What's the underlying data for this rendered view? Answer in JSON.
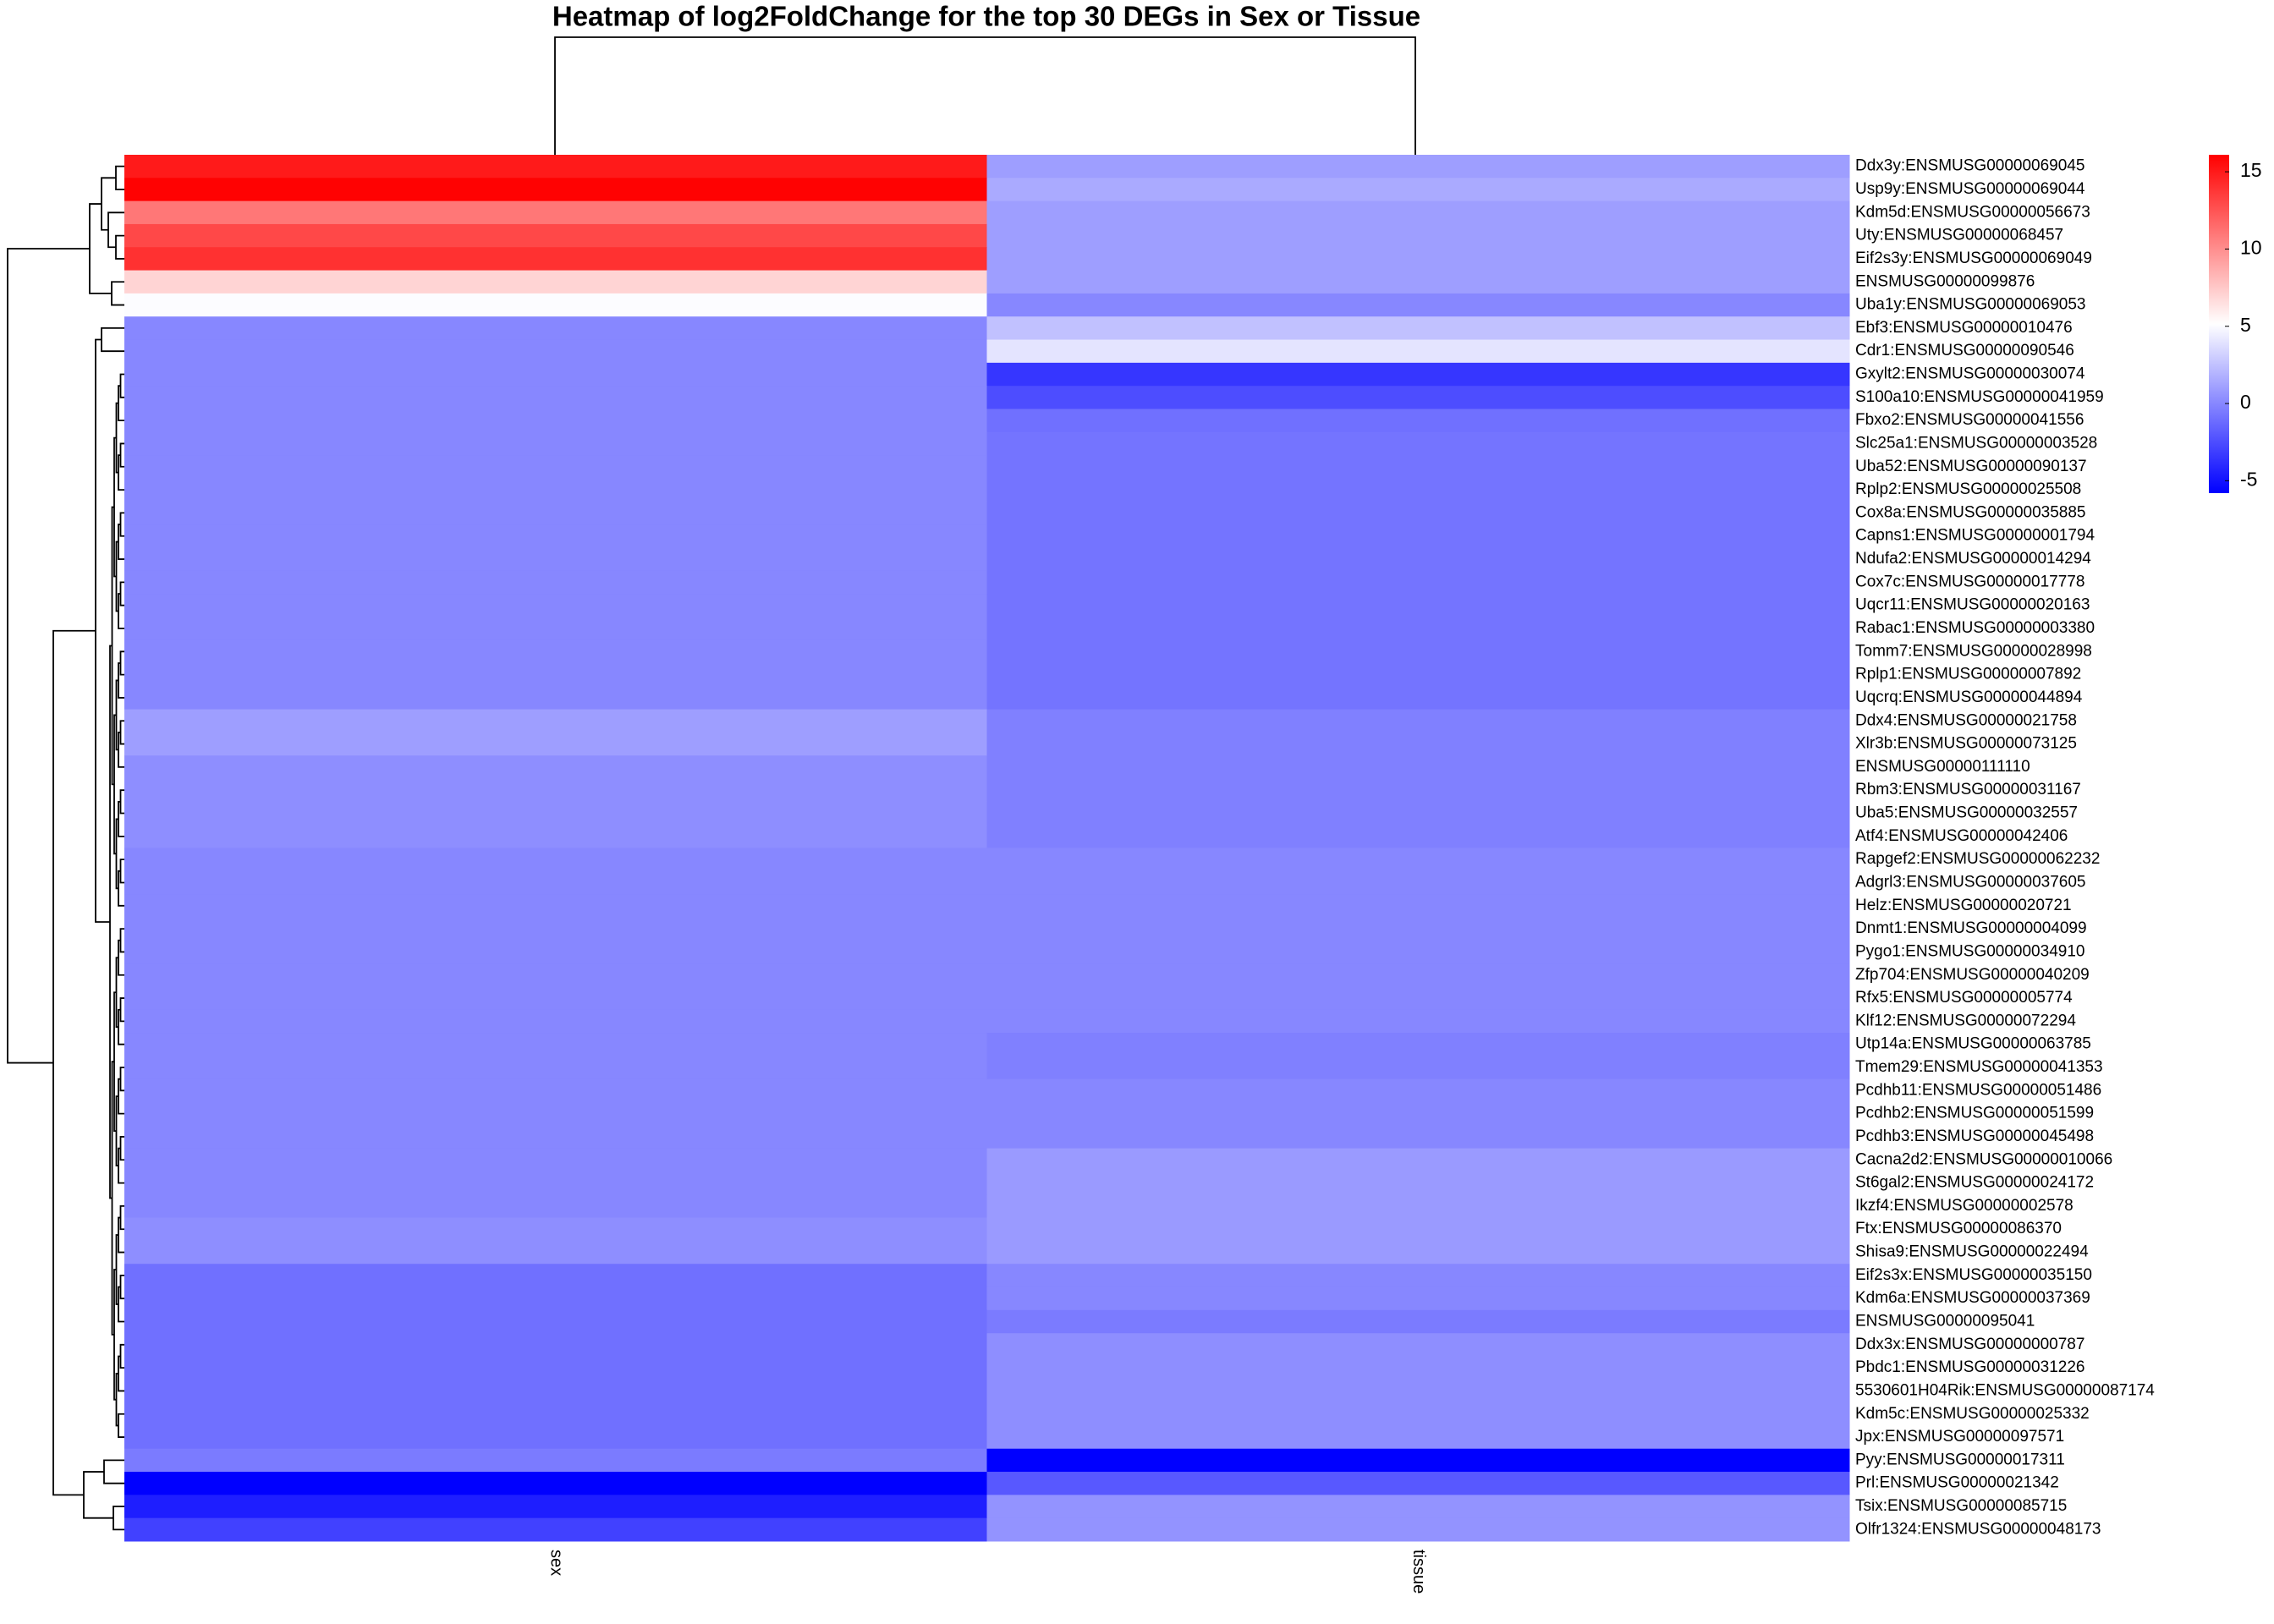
{
  "chart_data": {
    "type": "heatmap",
    "title": "Heatmap of log2FoldChange for the top 30 DEGs in Sex or Tissue",
    "columns": [
      "sex",
      "tissue"
    ],
    "rows": [
      "Ddx3y:ENSMUSG00000069045",
      "Usp9y:ENSMUSG00000069044",
      "Kdm5d:ENSMUSG00000056673",
      "Uty:ENSMUSG00000068457",
      "Eif2s3y:ENSMUSG00000069049",
      "ENSMUSG00000099876",
      "Uba1y:ENSMUSG00000069053",
      "Ebf3:ENSMUSG00000010476",
      "Cdr1:ENSMUSG00000090546",
      "Gxylt2:ENSMUSG00000030074",
      "S100a10:ENSMUSG00000041959",
      "Fbxo2:ENSMUSG00000041556",
      "Slc25a1:ENSMUSG00000003528",
      "Uba52:ENSMUSG00000090137",
      "Rplp2:ENSMUSG00000025508",
      "Cox8a:ENSMUSG00000035885",
      "Capns1:ENSMUSG00000001794",
      "Ndufa2:ENSMUSG00000014294",
      "Cox7c:ENSMUSG00000017778",
      "Uqcr11:ENSMUSG00000020163",
      "Rabac1:ENSMUSG00000003380",
      "Tomm7:ENSMUSG00000028998",
      "Rplp1:ENSMUSG00000007892",
      "Uqcrq:ENSMUSG00000044894",
      "Ddx4:ENSMUSG00000021758",
      "Xlr3b:ENSMUSG00000073125",
      "ENSMUSG00000111110",
      "Rbm3:ENSMUSG00000031167",
      "Uba5:ENSMUSG00000032557",
      "Atf4:ENSMUSG00000042406",
      "Rapgef2:ENSMUSG00000062232",
      "Adgrl3:ENSMUSG00000037605",
      "Helz:ENSMUSG00000020721",
      "Dnmt1:ENSMUSG00000004099",
      "Pygo1:ENSMUSG00000034910",
      "Zfp704:ENSMUSG00000040209",
      "Rfx5:ENSMUSG00000005774",
      "Klf12:ENSMUSG00000072294",
      "Utp14a:ENSMUSG00000063785",
      "Tmem29:ENSMUSG00000041353",
      "Pcdhb11:ENSMUSG00000051486",
      "Pcdhb2:ENSMUSG00000051599",
      "Pcdhb3:ENSMUSG00000045498",
      "Cacna2d2:ENSMUSG00000010066",
      "St6gal2:ENSMUSG00000024172",
      "Ikzf4:ENSMUSG00000002578",
      "Ftx:ENSMUSG00000086370",
      "Shisa9:ENSMUSG00000022494",
      "Eif2s3x:ENSMUSG00000035150",
      "Kdm6a:ENSMUSG00000037369",
      "ENSMUSG00000095041",
      "Ddx3x:ENSMUSG00000000787",
      "Pbdc1:ENSMUSG00000031226",
      "5530601H04Rik:ENSMUSG00000087174",
      "Kdm5c:ENSMUSG00000025332",
      "Jpx:ENSMUSG00000097571",
      "Pyy:ENSMUSG00000017311",
      "Prl:ENSMUSG00000021342",
      "Tsix:ENSMUSG00000085715",
      "Olfr1324:ENSMUSG00000048173"
    ],
    "values": [
      [
        15,
        1
      ],
      [
        16,
        1.5
      ],
      [
        11,
        1
      ],
      [
        13,
        1
      ],
      [
        14,
        1
      ],
      [
        7,
        1
      ],
      [
        5,
        0
      ],
      [
        0,
        2.5
      ],
      [
        0,
        4
      ],
      [
        0,
        -3.5
      ],
      [
        0,
        -2.5
      ],
      [
        0,
        -1
      ],
      [
        0,
        -0.8
      ],
      [
        0,
        -0.8
      ],
      [
        0,
        -0.8
      ],
      [
        0,
        -0.8
      ],
      [
        0,
        -0.8
      ],
      [
        0,
        -0.8
      ],
      [
        0,
        -0.8
      ],
      [
        0,
        -0.8
      ],
      [
        0,
        -0.8
      ],
      [
        0,
        -0.8
      ],
      [
        0,
        -0.8
      ],
      [
        0,
        -0.8
      ],
      [
        1,
        -0.3
      ],
      [
        1,
        -0.3
      ],
      [
        0.3,
        -0.3
      ],
      [
        0.3,
        -0.3
      ],
      [
        0.3,
        -0.3
      ],
      [
        0.3,
        -0.3
      ],
      [
        0,
        0
      ],
      [
        0,
        0
      ],
      [
        0,
        0
      ],
      [
        0,
        0
      ],
      [
        0,
        0
      ],
      [
        0,
        0
      ],
      [
        0,
        0
      ],
      [
        0,
        0
      ],
      [
        0,
        -0.3
      ],
      [
        0,
        -0.3
      ],
      [
        0,
        0
      ],
      [
        0,
        0
      ],
      [
        0,
        0
      ],
      [
        0,
        0.8
      ],
      [
        0,
        0.8
      ],
      [
        0,
        0.8
      ],
      [
        0.3,
        0.8
      ],
      [
        0.3,
        0.8
      ],
      [
        -1,
        0
      ],
      [
        -1,
        0
      ],
      [
        -1,
        -0.5
      ],
      [
        -1,
        0.3
      ],
      [
        -1,
        0.3
      ],
      [
        -1,
        0.3
      ],
      [
        -1,
        0.3
      ],
      [
        -1,
        0.3
      ],
      [
        -0.5,
        -5.8
      ],
      [
        -5.8,
        -2
      ],
      [
        -4.5,
        0.5
      ],
      [
        -3,
        0.5
      ]
    ],
    "clim": [
      -5.8,
      16.1
    ],
    "colors": [
      "#0000ff",
      "#ffffff",
      "#ff0000"
    ],
    "colorbar_ticks": [
      -5,
      0,
      5,
      10,
      15
    ]
  }
}
